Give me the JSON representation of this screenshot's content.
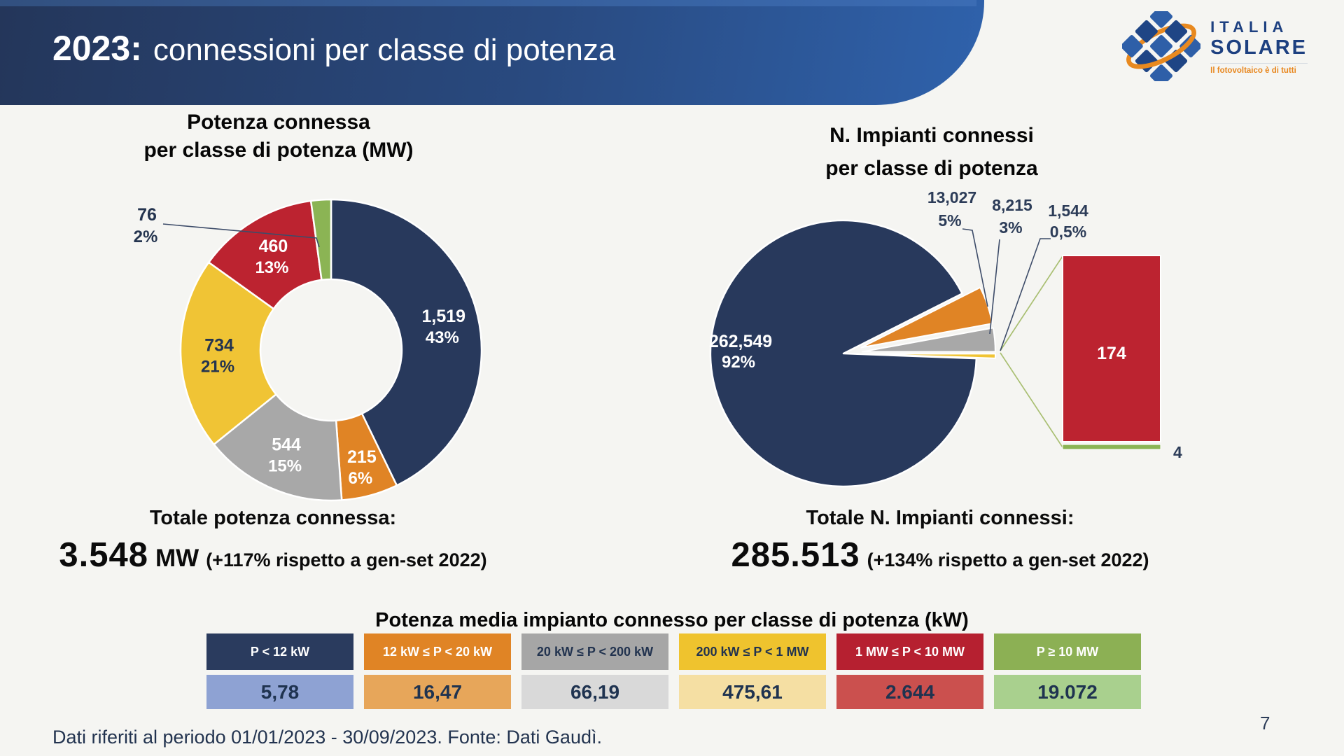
{
  "header": {
    "year": "2023:",
    "title": "connessioni per classe di potenza"
  },
  "logo": {
    "name_top": "ITALIA",
    "name_bottom": "SOLARE",
    "tagline": "Il fotovoltaico è di tutti"
  },
  "chart_data": [
    {
      "type": "pie",
      "variant": "donut",
      "title": "Potenza connessa per classe di potenza (MW)",
      "title_lines": [
        "Potenza connessa",
        "per classe di potenza (MW)"
      ],
      "unit": "MW",
      "categories": [
        "P < 12 kW",
        "12 kW ≤ P < 20 kW",
        "20 kW ≤ P < 200 kW",
        "200 kW ≤ P < 1 MW",
        "1 MW ≤ P < 10 MW",
        "P ≥ 10 MW"
      ],
      "values": [
        1519,
        215,
        544,
        734,
        460,
        76
      ],
      "value_labels": [
        "1,519",
        "215",
        "544",
        "734",
        "460",
        "76"
      ],
      "percent_labels": [
        "43%",
        "6%",
        "15%",
        "21%",
        "13%",
        "2%"
      ],
      "colors": [
        "#28395C",
        "#E08425",
        "#A8A8A8",
        "#F0C435",
        "#BC2330",
        "#8BB454"
      ],
      "label_colors": [
        "#FFFFFF",
        "#FFFFFF",
        "#FFFFFF",
        "#24344F",
        "#FFFFFF",
        "#24344F"
      ],
      "leader_color": "#3D4C69"
    },
    {
      "type": "pie",
      "variant": "bar-of-pie",
      "title": "N. Impianti connessi per classe di potenza",
      "title_lines": [
        "N. Impianti connessi",
        "per classe di potenza"
      ],
      "categories": [
        "P < 12 kW",
        "12 kW ≤ P < 20 kW",
        "20 kW ≤ P < 200 kW",
        "200 kW ≤ P < 1 MW",
        "1 MW ≤ P < 10 MW",
        "P ≥ 10 MW"
      ],
      "values": [
        262549,
        13027,
        8215,
        1544,
        174,
        4
      ],
      "value_labels": [
        "262,549",
        "13,027",
        "8,215",
        "1,544",
        "174",
        "4"
      ],
      "percent_labels": [
        "92%",
        "5%",
        "3%",
        "0,5%",
        "",
        ""
      ],
      "colors": [
        "#28395C",
        "#E08425",
        "#A8A8A8",
        "#F0C435",
        "#BC2330",
        "#8BB454"
      ],
      "bar": {
        "categories": [
          "1 MW ≤ P < 10 MW",
          "P ≥ 10 MW"
        ],
        "values": [
          174,
          4
        ]
      },
      "leader_color": "#3D4C69",
      "connector_color": "#A9BF72"
    }
  ],
  "totals": {
    "left": {
      "label": "Totale potenza connessa:",
      "value": "3.548",
      "unit": "MW",
      "note": "(+117% rispetto a gen-set 2022)"
    },
    "right": {
      "label": "Totale N. Impianti connessi:",
      "value": "285.513",
      "note": "(+134% rispetto a gen-set 2022)"
    }
  },
  "avg_table": {
    "title": "Potenza media impianto connesso per classe di potenza (kW)",
    "columns": [
      {
        "range": "P < 12 kW",
        "value": "5,78",
        "header_bg": "#2A3B5E",
        "header_fg": "#FFFFFF",
        "value_bg": "#8EA2D3"
      },
      {
        "range": "12 kW ≤ P < 20 kW",
        "value": "16,47",
        "header_bg": "#E08425",
        "header_fg": "#FFFFFF",
        "value_bg": "#E7A65A"
      },
      {
        "range": "20 kW ≤ P < 200 kW",
        "value": "66,19",
        "header_bg": "#A6A6A6",
        "header_fg": "#22334F",
        "value_bg": "#D9D9D9"
      },
      {
        "range": "200 kW ≤ P < 1 MW",
        "value": "475,61",
        "header_bg": "#EFC32E",
        "header_fg": "#22334F",
        "value_bg": "#F5DFA3"
      },
      {
        "range": "1 MW ≤ P < 10 MW",
        "value": "2.644",
        "header_bg": "#B62030",
        "header_fg": "#FFFFFF",
        "value_bg": "#CB504E"
      },
      {
        "range": "P ≥ 10 MW",
        "value": "19.072",
        "header_bg": "#8CB054",
        "header_fg": "#FFFFFF",
        "value_bg": "#A9D08E"
      }
    ]
  },
  "footer": {
    "note": "Dati riferiti al periodo 01/01/2023 - 30/09/2023. Fonte: Dati Gaudì.",
    "page": "7"
  }
}
